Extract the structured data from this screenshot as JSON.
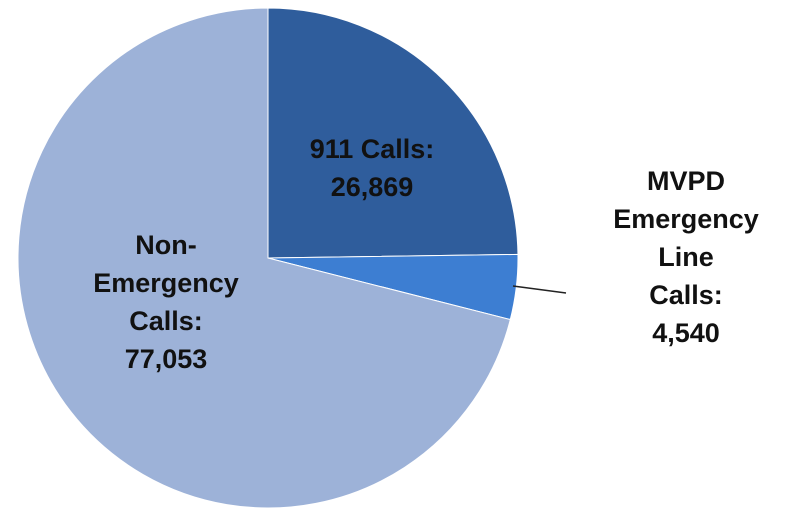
{
  "chart_data": {
    "type": "pie",
    "values": [
      26869,
      4540,
      77053
    ],
    "value_labels": [
      "911 Calls:\n26,869",
      "MVPD\nEmergency Line\nCalls: 4,540",
      "Non-\nEmergency\nCalls:\n77,053"
    ],
    "colors": [
      "#2f5d9c",
      "#3d7ed2",
      "#9db2d8"
    ],
    "start_angle": 0,
    "direction": "clockwise"
  }
}
